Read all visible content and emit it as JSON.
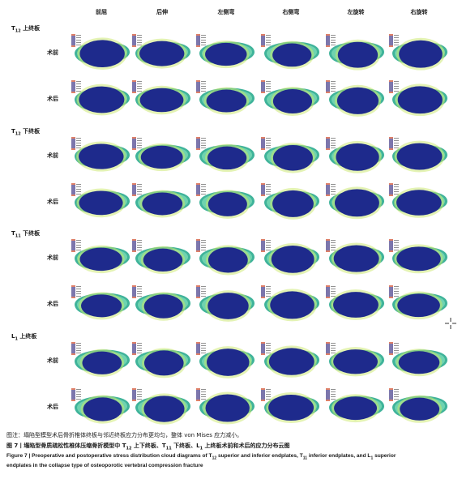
{
  "columns": [
    "前屈",
    "后伸",
    "左侧弯",
    "右侧弯",
    "左旋转",
    "右旋转"
  ],
  "sections": [
    {
      "label_main": "T",
      "label_sub": "12",
      "label_tail": " 上终板",
      "rows": [
        "术前",
        "术后"
      ]
    },
    {
      "label_main": "T",
      "label_sub": "12",
      "label_tail": " 下终板",
      "rows": [
        "术前",
        "术后"
      ]
    },
    {
      "label_main": "T",
      "label_sub": "11",
      "label_tail": " 下终板",
      "rows": [
        "术前",
        "术后"
      ]
    },
    {
      "label_main": "L",
      "label_sub": "1",
      "label_tail": " 上终板",
      "rows": [
        "术前",
        "术后"
      ]
    }
  ],
  "colors": {
    "outer_ring": "#3fb39a",
    "mid_ring": "#6fd3b0",
    "inner": "#1e2a8c",
    "rim_light": "#c9e86a",
    "legend_strip": "#d04a2a"
  },
  "captions": {
    "note": "图注：塌陷型模型术后骨折椎体终板与邻近终板应力分布更均匀，整体 von Mises 应力减小。",
    "cn_prefix": "图 7丨塌陷型骨质疏松性椎体压缩骨折模型中 T",
    "cn_sub1": "12",
    "cn_mid1": " 上下终板、T",
    "cn_sub2": "11",
    "cn_mid2": " 下终板、L",
    "cn_sub3": "1",
    "cn_tail": " 上终板术前和术后的应力分布云图",
    "en_line1_a": "Figure 7  |  Preoperative and postoperative stress distribution cloud diagrams of T",
    "en_sub1": "12",
    "en_line1_b": " superior and inferior endplates, T",
    "en_sub2": "11",
    "en_line1_c": " inferior endplates, and L",
    "en_sub3": "1",
    "en_line1_d": " superior",
    "en_line2": "endplates in the collapse type of osteoporotic vertebral compression fracture"
  }
}
